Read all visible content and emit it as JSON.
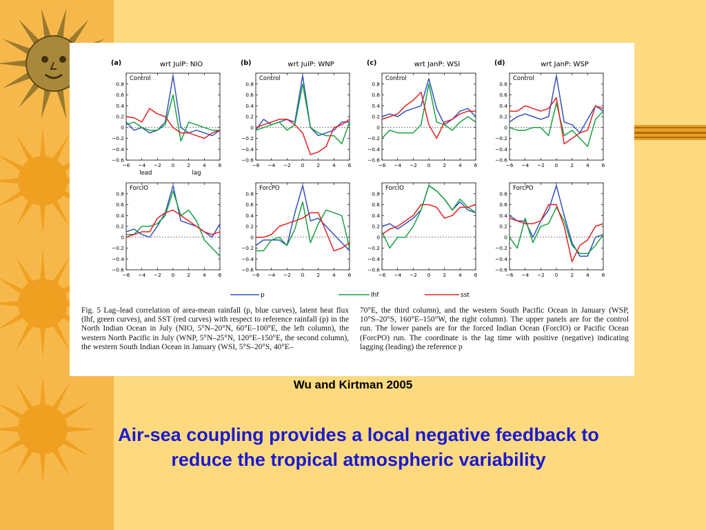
{
  "colors": {
    "background": "#fdda7f",
    "left_band": "#f7b84b",
    "sun": "#f0a020",
    "headline": "#1a1ad0",
    "p": "#3050c0",
    "lhf": "#18a040",
    "sst": "#e02020"
  },
  "decoration": {
    "left_icons": [
      "sun-face-icon",
      "sun-icon",
      "sun-icon",
      "sun-icon"
    ]
  },
  "figure": {
    "caption_left": "Fig. 5 Lag–lead correlation of area-mean rainfall (p, blue curves), latent heat flux (lhf, green curves), and SST (red curves) with respect to reference rainfall (p) in the North Indian Ocean in July (NIO, 5°N–20°N, 60°E–100°E, the left column), the western North Pacific in July (WNP, 5°N–25°N, 120°E–150°E, the second column), the western South Indian Ocean in January (WSI, 5°S–20°S, 40°E–",
    "caption_right": "70°E, the third column), and the western South Pacific Ocean in January (WSP, 10°S–20°S, 160°E–150°W, the right column). The upper panels are for the control run. The lower panels are for the forced Indian Ocean (ForcIO) or Pacific Ocean (ForcPO) run. The coordinate is the lag time with positive (negative) indicating lagging (leading) the reference p"
  },
  "citation": "Wu and Kirtman 2005",
  "headline": "Air-sea coupling provides a local negative feedback to reduce the tropical atmospheric variability",
  "chart_data": {
    "type": "line",
    "x": [
      -6,
      -5,
      -4,
      -3,
      -2,
      -1,
      0,
      1,
      2,
      3,
      4,
      5,
      6
    ],
    "xticks": [
      "−6",
      "−4",
      "−2",
      "0",
      "2",
      "4",
      "6"
    ],
    "yticks": [
      "0.8",
      "0.6",
      "0.4",
      "0.2",
      "0",
      "−0.2",
      "−0.4",
      "−0.6"
    ],
    "ylim": [
      -0.6,
      1.0
    ],
    "xlim": [
      -6,
      6
    ],
    "legend": {
      "placement": "bottom",
      "entries": [
        "p",
        "lhf",
        "sst"
      ]
    },
    "panels": [
      {
        "letter": "(a)",
        "title": "wrt JulP: NIO",
        "label": "Control",
        "xlabel_lead": "lead",
        "xlabel_lag": "lag",
        "series": {
          "p": [
            0.1,
            -0.05,
            0.0,
            -0.1,
            -0.05,
            0.1,
            0.95,
            0.0,
            -0.1,
            -0.05,
            -0.1,
            -0.15,
            -0.05
          ],
          "lhf": [
            0.05,
            0.1,
            0.0,
            -0.05,
            -0.05,
            0.05,
            0.6,
            -0.25,
            0.1,
            0.05,
            0.0,
            -0.05,
            -0.05
          ],
          "sst": [
            0.2,
            0.18,
            0.1,
            0.35,
            0.25,
            0.2,
            0.0,
            -0.1,
            -0.1,
            -0.15,
            -0.2,
            -0.1,
            -0.05
          ]
        }
      },
      {
        "letter": "(b)",
        "title": "wrt JulP: WNP",
        "label": "Control",
        "series": {
          "p": [
            -0.05,
            0.15,
            0.05,
            0.1,
            0.15,
            0.1,
            0.95,
            0.0,
            -0.15,
            -0.1,
            -0.05,
            0.1,
            0.1
          ],
          "lhf": [
            -0.05,
            0.0,
            0.05,
            0.1,
            -0.05,
            0.05,
            0.8,
            0.0,
            -0.1,
            -0.15,
            -0.15,
            -0.3,
            0.1
          ],
          "sst": [
            0.0,
            0.05,
            0.1,
            0.15,
            0.15,
            0.05,
            -0.1,
            -0.5,
            -0.45,
            -0.35,
            0.0,
            0.05,
            0.15
          ]
        }
      },
      {
        "letter": "(c)",
        "title": "wrt JanP: WSI",
        "label": "Control",
        "series": {
          "p": [
            0.2,
            0.25,
            0.2,
            0.3,
            0.35,
            0.4,
            0.9,
            0.35,
            0.05,
            0.15,
            0.3,
            0.35,
            0.2
          ],
          "lhf": [
            -0.2,
            -0.05,
            -0.1,
            -0.1,
            -0.1,
            0.05,
            0.8,
            0.1,
            0.05,
            -0.05,
            0.1,
            0.2,
            0.1
          ],
          "sst": [
            0.15,
            0.2,
            0.25,
            0.4,
            0.5,
            0.65,
            0.05,
            -0.2,
            0.1,
            0.15,
            0.25,
            0.3,
            0.3
          ]
        }
      },
      {
        "letter": "(d)",
        "title": "wrt JanP: WSP",
        "label": "Control",
        "series": {
          "p": [
            0.1,
            0.2,
            0.25,
            0.2,
            0.15,
            0.2,
            0.95,
            0.1,
            0.05,
            -0.1,
            0.15,
            0.4,
            0.3
          ],
          "lhf": [
            0.0,
            -0.05,
            -0.05,
            0.0,
            0.0,
            -0.15,
            0.45,
            -0.15,
            -0.05,
            -0.2,
            -0.35,
            0.15,
            0.3
          ],
          "sst": [
            0.3,
            0.3,
            0.4,
            0.35,
            0.3,
            0.35,
            0.55,
            -0.3,
            -0.2,
            -0.1,
            -0.05,
            0.4,
            0.35
          ]
        }
      },
      {
        "letter": "",
        "title": "",
        "label": "ForcIO",
        "series": {
          "p": [
            0.1,
            0.15,
            0.05,
            0.0,
            0.2,
            0.45,
            0.95,
            0.3,
            0.25,
            0.2,
            0.1,
            0.0,
            0.25
          ],
          "lhf": [
            0.05,
            0.05,
            0.2,
            0.2,
            0.25,
            0.4,
            0.85,
            0.4,
            0.5,
            0.3,
            -0.05,
            -0.2,
            -0.35
          ],
          "sst": [
            0.0,
            0.05,
            0.1,
            0.1,
            0.35,
            0.45,
            0.5,
            0.4,
            0.3,
            0.2,
            0.1,
            0.05,
            0.1
          ]
        }
      },
      {
        "letter": "",
        "title": "",
        "label": "ForcPO",
        "series": {
          "p": [
            -0.15,
            -0.05,
            -0.05,
            -0.05,
            -0.15,
            0.45,
            0.95,
            0.3,
            0.35,
            0.2,
            0.05,
            -0.1,
            -0.25
          ],
          "lhf": [
            -0.25,
            -0.25,
            -0.05,
            0.0,
            -0.15,
            0.15,
            0.65,
            -0.1,
            0.25,
            0.5,
            0.45,
            0.4,
            -0.2
          ],
          "sst": [
            0.0,
            0.0,
            0.05,
            0.2,
            0.25,
            0.3,
            0.35,
            0.45,
            0.45,
            0.1,
            -0.25,
            -0.2,
            -0.1
          ]
        }
      },
      {
        "letter": "",
        "title": "",
        "label": "ForcIO",
        "series": {
          "p": [
            0.2,
            0.25,
            0.15,
            0.25,
            0.35,
            0.5,
            0.95,
            0.85,
            0.7,
            0.5,
            0.65,
            0.5,
            0.45
          ],
          "lhf": [
            0.1,
            -0.2,
            0.0,
            0.0,
            0.2,
            0.5,
            0.95,
            0.85,
            0.7,
            0.5,
            0.7,
            0.55,
            0.45
          ],
          "sst": [
            0.05,
            0.15,
            0.2,
            0.3,
            0.4,
            0.6,
            0.6,
            0.55,
            0.35,
            0.4,
            0.55,
            0.55,
            0.6
          ]
        }
      },
      {
        "letter": "",
        "title": "",
        "label": "ForcPO",
        "series": {
          "p": [
            0.4,
            0.3,
            0.3,
            0.0,
            0.3,
            0.5,
            0.95,
            0.4,
            -0.1,
            -0.35,
            -0.35,
            0.0,
            0.05
          ],
          "lhf": [
            0.0,
            -0.2,
            0.35,
            -0.1,
            0.2,
            0.25,
            0.55,
            0.3,
            -0.15,
            -0.3,
            -0.3,
            -0.15,
            0.05
          ],
          "sst": [
            0.35,
            0.3,
            0.25,
            0.25,
            0.3,
            0.6,
            0.6,
            0.2,
            -0.45,
            -0.15,
            -0.05,
            0.2,
            0.25
          ]
        }
      }
    ]
  }
}
